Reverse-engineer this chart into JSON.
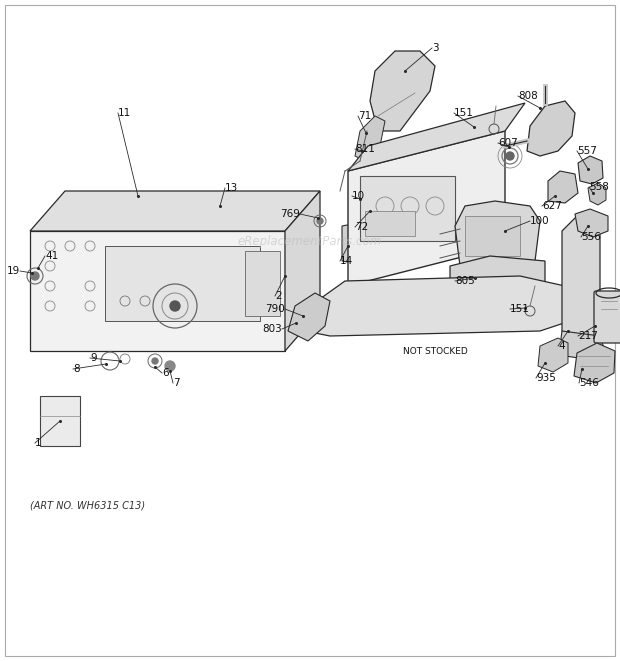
{
  "bg_color": "#ffffff",
  "art_no": "(ART NO. WH6315 C13)",
  "watermark": "eReplacementParts.com",
  "line_color": "#2a2a2a",
  "fill_light": "#e8e8e8",
  "fill_mid": "#d0d0d0"
}
